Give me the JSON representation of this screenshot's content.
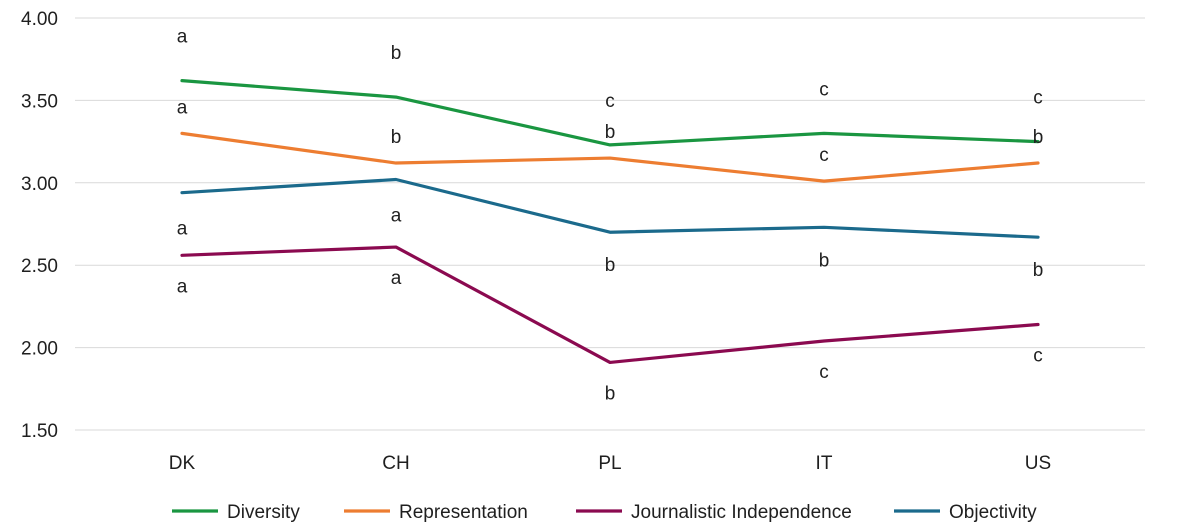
{
  "chart_data": {
    "type": "line",
    "categories": [
      "DK",
      "CH",
      "PL",
      "IT",
      "US"
    ],
    "ylim": [
      1.5,
      4.0
    ],
    "yticks": [
      "1.50",
      "2.00",
      "2.50",
      "3.00",
      "3.50",
      "4.00"
    ],
    "grid": true,
    "legend_position": "bottom",
    "series": [
      {
        "name": "Diversity",
        "color": "#1a9641",
        "values": [
          3.62,
          3.52,
          3.23,
          3.3,
          3.25
        ],
        "letters": [
          "a",
          "b",
          "c",
          "c",
          "c"
        ]
      },
      {
        "name": "Representation",
        "color": "#ed7d31",
        "values": [
          3.3,
          3.12,
          3.15,
          3.01,
          3.12
        ],
        "letters": [
          "a",
          "b",
          "b",
          "c",
          "b"
        ]
      },
      {
        "name": "Journalistic Independence",
        "color": "#8b0a50",
        "values": [
          2.56,
          2.61,
          1.91,
          2.04,
          2.14
        ],
        "letters": [
          "a",
          "a",
          "b",
          "c",
          "c"
        ]
      },
      {
        "name": "Objectivity",
        "color": "#1b6a8c",
        "values": [
          2.94,
          3.02,
          2.7,
          2.73,
          2.67
        ],
        "letters": [
          "a",
          "a",
          "b",
          "b",
          "b"
        ]
      }
    ]
  }
}
